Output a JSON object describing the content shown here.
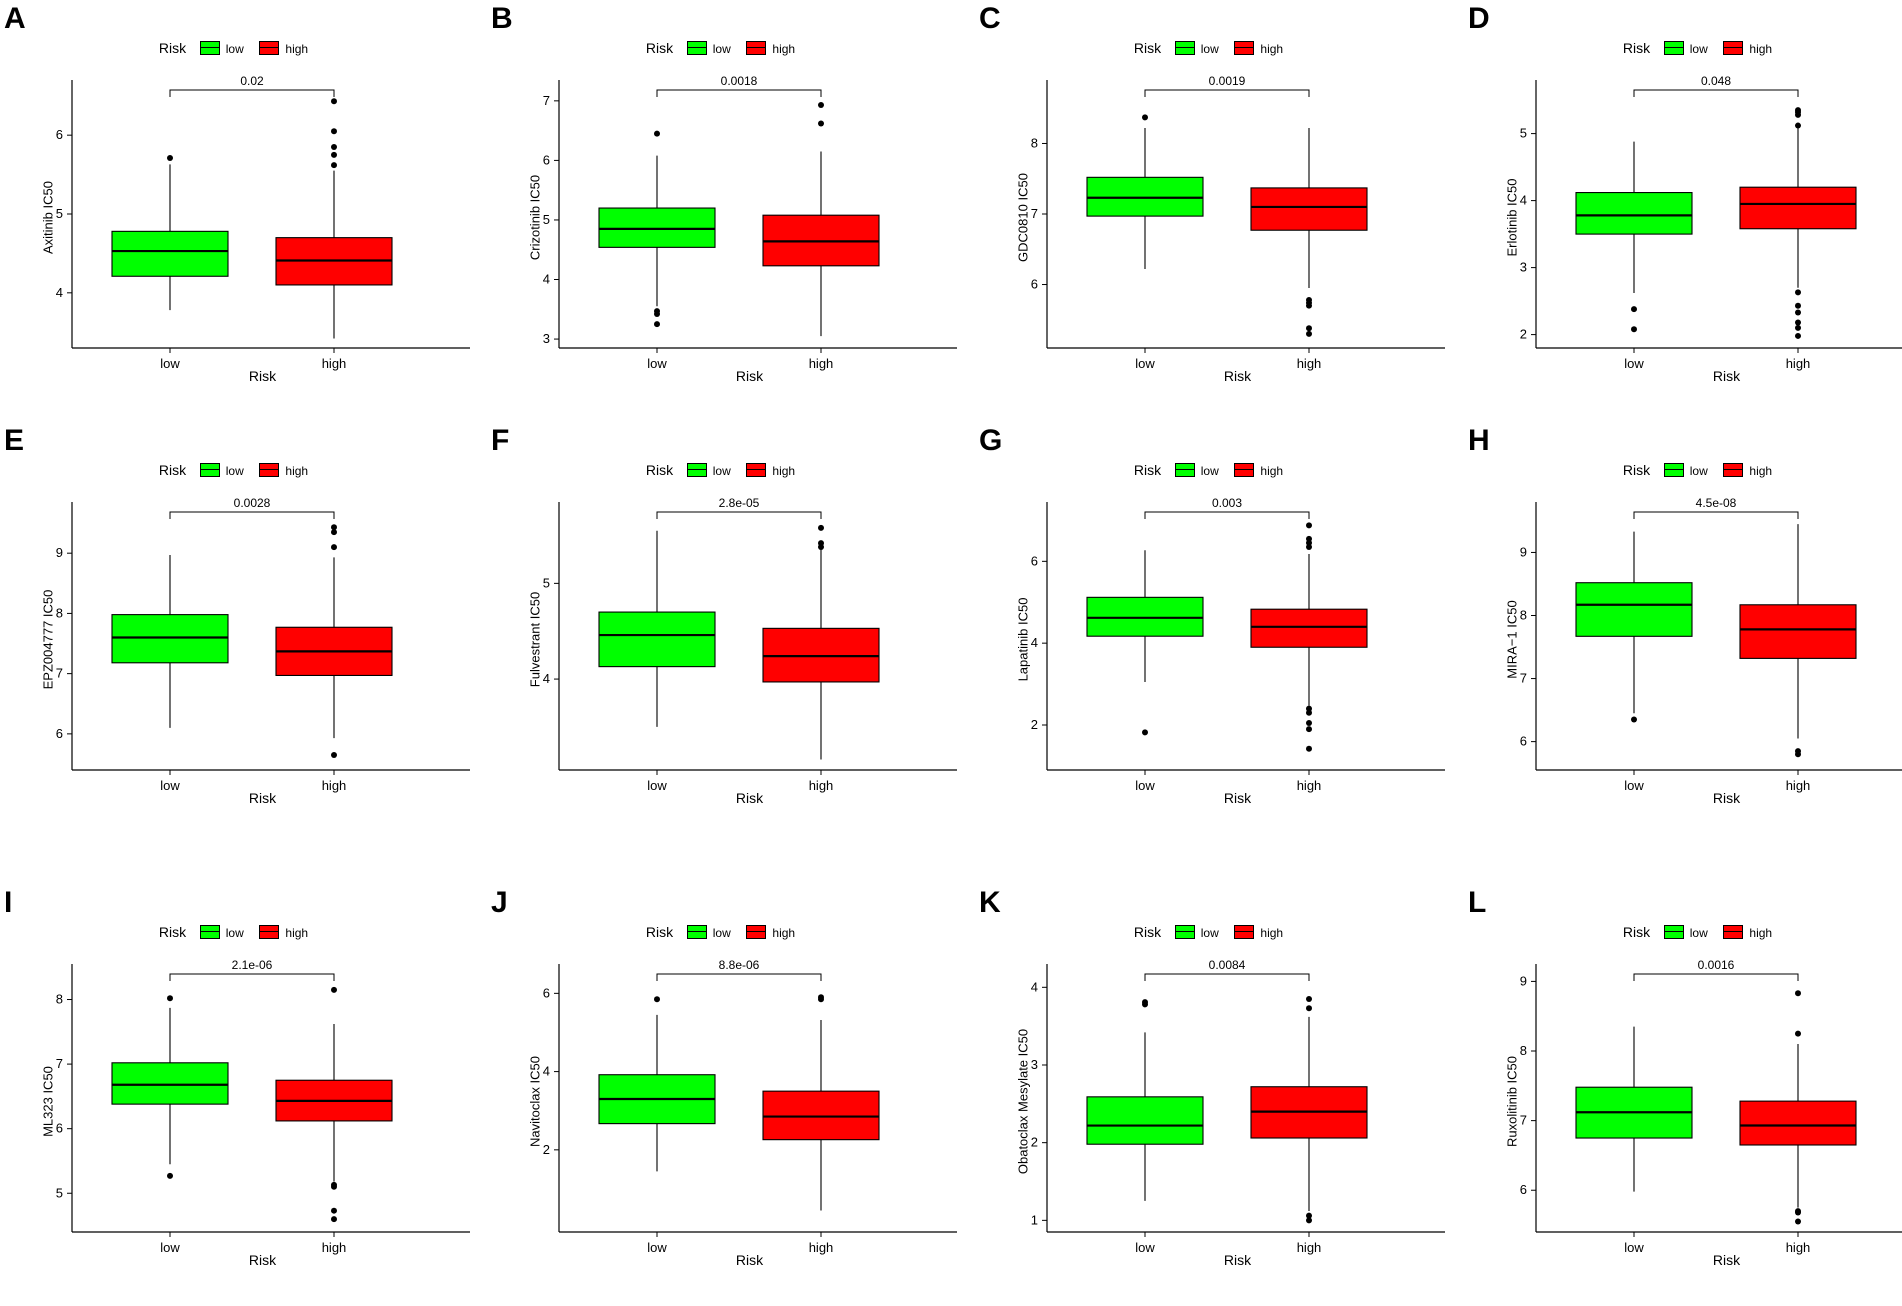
{
  "figure": {
    "legend_title": "Risk",
    "legend_low": "low",
    "legend_high": "high"
  },
  "chart_data": [
    {
      "type": "box",
      "letter": "A",
      "ylabel": "Axitinib IC50",
      "xlabel": "Risk",
      "categories": [
        "low",
        "high"
      ],
      "pvalue": "0.02",
      "ylim": [
        3.3,
        6.7
      ],
      "yticks": [
        4,
        5,
        6
      ],
      "boxes": [
        {
          "group": "low",
          "color": "#00ff00",
          "whisker_low": 3.78,
          "q1": 4.21,
          "median": 4.53,
          "q3": 4.78,
          "whisker_high": 5.63,
          "outliers": [
            5.71
          ]
        },
        {
          "group": "high",
          "color": "#ff0000",
          "whisker_low": 3.42,
          "q1": 4.1,
          "median": 4.41,
          "q3": 4.7,
          "whisker_high": 5.55,
          "outliers": [
            5.62,
            5.75,
            5.85,
            6.05,
            6.43
          ]
        }
      ]
    },
    {
      "type": "box",
      "letter": "B",
      "ylabel": "Crizotinib IC50",
      "xlabel": "Risk",
      "categories": [
        "low",
        "high"
      ],
      "pvalue": "0.0018",
      "ylim": [
        2.85,
        7.35
      ],
      "yticks": [
        3,
        4,
        5,
        6,
        7
      ],
      "boxes": [
        {
          "group": "low",
          "color": "#00ff00",
          "whisker_low": 3.55,
          "q1": 4.54,
          "median": 4.85,
          "q3": 5.2,
          "whisker_high": 6.08,
          "outliers": [
            3.25,
            3.42,
            3.47,
            6.45
          ]
        },
        {
          "group": "high",
          "color": "#ff0000",
          "whisker_low": 3.05,
          "q1": 4.23,
          "median": 4.64,
          "q3": 5.08,
          "whisker_high": 6.15,
          "outliers": [
            6.62,
            6.93
          ]
        }
      ]
    },
    {
      "type": "box",
      "letter": "C",
      "ylabel": "GDC0810 IC50",
      "xlabel": "Risk",
      "categories": [
        "low",
        "high"
      ],
      "pvalue": "0.0019",
      "ylim": [
        5.1,
        8.9
      ],
      "yticks": [
        6,
        7,
        8
      ],
      "boxes": [
        {
          "group": "low",
          "color": "#00ff00",
          "whisker_low": 6.22,
          "q1": 6.97,
          "median": 7.23,
          "q3": 7.52,
          "whisker_high": 8.22,
          "outliers": [
            8.37
          ]
        },
        {
          "group": "high",
          "color": "#ff0000",
          "whisker_low": 5.95,
          "q1": 6.77,
          "median": 7.1,
          "q3": 7.37,
          "whisker_high": 8.22,
          "outliers": [
            5.3,
            5.38,
            5.7,
            5.74,
            5.78
          ]
        }
      ]
    },
    {
      "type": "box",
      "letter": "D",
      "ylabel": "Erlotinib IC50",
      "xlabel": "Risk",
      "categories": [
        "low",
        "high"
      ],
      "pvalue": "0.048",
      "ylim": [
        1.8,
        5.8
      ],
      "yticks": [
        2,
        3,
        4,
        5
      ],
      "boxes": [
        {
          "group": "low",
          "color": "#00ff00",
          "whisker_low": 2.62,
          "q1": 3.5,
          "median": 3.78,
          "q3": 4.12,
          "whisker_high": 4.88,
          "outliers": [
            2.08,
            2.38
          ]
        },
        {
          "group": "high",
          "color": "#ff0000",
          "whisker_low": 2.7,
          "q1": 3.58,
          "median": 3.95,
          "q3": 4.2,
          "whisker_high": 5.1,
          "outliers": [
            1.98,
            2.1,
            2.18,
            2.33,
            2.43,
            2.63,
            5.12,
            5.28,
            5.32,
            5.35
          ]
        }
      ]
    },
    {
      "type": "box",
      "letter": "E",
      "ylabel": "EPZ004777 IC50",
      "xlabel": "Risk",
      "categories": [
        "low",
        "high"
      ],
      "pvalue": "0.0028",
      "ylim": [
        5.4,
        9.85
      ],
      "yticks": [
        6,
        7,
        8,
        9
      ],
      "boxes": [
        {
          "group": "low",
          "color": "#00ff00",
          "whisker_low": 6.1,
          "q1": 7.18,
          "median": 7.6,
          "q3": 7.98,
          "whisker_high": 8.97,
          "outliers": []
        },
        {
          "group": "high",
          "color": "#ff0000",
          "whisker_low": 5.93,
          "q1": 6.97,
          "median": 7.37,
          "q3": 7.77,
          "whisker_high": 8.93,
          "outliers": [
            5.65,
            9.1,
            9.35,
            9.43
          ]
        }
      ]
    },
    {
      "type": "box",
      "letter": "F",
      "ylabel": "Fulvestrant IC50",
      "xlabel": "Risk",
      "categories": [
        "low",
        "high"
      ],
      "pvalue": "2.8e-05",
      "ylim": [
        3.05,
        5.85
      ],
      "yticks": [
        4,
        5
      ],
      "boxes": [
        {
          "group": "low",
          "color": "#00ff00",
          "whisker_low": 3.5,
          "q1": 4.13,
          "median": 4.46,
          "q3": 4.7,
          "whisker_high": 5.55,
          "outliers": []
        },
        {
          "group": "high",
          "color": "#ff0000",
          "whisker_low": 3.16,
          "q1": 3.97,
          "median": 4.24,
          "q3": 4.53,
          "whisker_high": 5.4,
          "outliers": [
            5.38,
            5.42,
            5.58
          ]
        }
      ]
    },
    {
      "type": "box",
      "letter": "G",
      "ylabel": "Lapatinib IC50",
      "xlabel": "Risk",
      "categories": [
        "low",
        "high"
      ],
      "pvalue": "0.003",
      "ylim": [
        0.9,
        7.45
      ],
      "yticks": [
        2,
        4,
        6
      ],
      "boxes": [
        {
          "group": "low",
          "color": "#00ff00",
          "whisker_low": 3.05,
          "q1": 4.17,
          "median": 4.62,
          "q3": 5.12,
          "whisker_high": 6.27,
          "outliers": [
            1.82
          ]
        },
        {
          "group": "high",
          "color": "#ff0000",
          "whisker_low": 2.47,
          "q1": 3.9,
          "median": 4.4,
          "q3": 4.83,
          "whisker_high": 6.18,
          "outliers": [
            1.42,
            1.9,
            2.05,
            2.3,
            2.4,
            6.35,
            6.45,
            6.55,
            6.88
          ]
        }
      ]
    },
    {
      "type": "box",
      "letter": "H",
      "ylabel": "MIRA−1 IC50",
      "xlabel": "Risk",
      "categories": [
        "low",
        "high"
      ],
      "pvalue": "4.5e-08",
      "ylim": [
        5.55,
        9.8
      ],
      "yticks": [
        6,
        7,
        8,
        9
      ],
      "boxes": [
        {
          "group": "low",
          "color": "#00ff00",
          "whisker_low": 6.45,
          "q1": 7.67,
          "median": 8.17,
          "q3": 8.52,
          "whisker_high": 9.33,
          "outliers": [
            6.35
          ]
        },
        {
          "group": "high",
          "color": "#ff0000",
          "whisker_low": 6.05,
          "q1": 7.32,
          "median": 7.78,
          "q3": 8.17,
          "whisker_high": 9.45,
          "outliers": [
            5.8,
            5.85
          ]
        }
      ]
    },
    {
      "type": "box",
      "letter": "I",
      "ylabel": "ML323 IC50",
      "xlabel": "Risk",
      "categories": [
        "low",
        "high"
      ],
      "pvalue": "2.1e-06",
      "ylim": [
        4.4,
        8.55
      ],
      "yticks": [
        5,
        6,
        7,
        8
      ],
      "boxes": [
        {
          "group": "low",
          "color": "#00ff00",
          "whisker_low": 5.45,
          "q1": 6.38,
          "median": 6.68,
          "q3": 7.02,
          "whisker_high": 7.87,
          "outliers": [
            5.27,
            8.02
          ]
        },
        {
          "group": "high",
          "color": "#ff0000",
          "whisker_low": 5.18,
          "q1": 6.12,
          "median": 6.43,
          "q3": 6.75,
          "whisker_high": 7.62,
          "outliers": [
            4.6,
            4.73,
            5.1,
            5.13,
            8.15
          ]
        }
      ]
    },
    {
      "type": "box",
      "letter": "J",
      "ylabel": "Navitoclax IC50",
      "xlabel": "Risk",
      "categories": [
        "low",
        "high"
      ],
      "pvalue": "8.8e-06",
      "ylim": [
        -0.1,
        6.75
      ],
      "yticks": [
        2,
        4,
        6
      ],
      "boxes": [
        {
          "group": "low",
          "color": "#00ff00",
          "whisker_low": 1.45,
          "q1": 2.67,
          "median": 3.3,
          "q3": 3.92,
          "whisker_high": 5.45,
          "outliers": [
            5.85
          ]
        },
        {
          "group": "high",
          "color": "#ff0000",
          "whisker_low": 0.45,
          "q1": 2.26,
          "median": 2.85,
          "q3": 3.5,
          "whisker_high": 5.32,
          "outliers": [
            5.85,
            5.9
          ]
        }
      ]
    },
    {
      "type": "box",
      "letter": "K",
      "ylabel": "Obatoclax Mesylate IC50",
      "xlabel": "Risk",
      "categories": [
        "low",
        "high"
      ],
      "pvalue": "0.0084",
      "ylim": [
        0.85,
        4.3
      ],
      "yticks": [
        1,
        2,
        3,
        4
      ],
      "boxes": [
        {
          "group": "low",
          "color": "#00ff00",
          "whisker_low": 1.25,
          "q1": 1.98,
          "median": 2.22,
          "q3": 2.59,
          "whisker_high": 3.42,
          "outliers": [
            3.78,
            3.81
          ]
        },
        {
          "group": "high",
          "color": "#ff0000",
          "whisker_low": 1.12,
          "q1": 2.06,
          "median": 2.4,
          "q3": 2.72,
          "whisker_high": 3.62,
          "outliers": [
            1.0,
            1.06,
            3.73,
            3.85
          ]
        }
      ]
    },
    {
      "type": "box",
      "letter": "L",
      "ylabel": "Ruxolitinib IC50",
      "xlabel": "Risk",
      "categories": [
        "low",
        "high"
      ],
      "pvalue": "0.0016",
      "ylim": [
        5.4,
        9.25
      ],
      "yticks": [
        6,
        7,
        8,
        9
      ],
      "boxes": [
        {
          "group": "low",
          "color": "#00ff00",
          "whisker_low": 5.98,
          "q1": 6.75,
          "median": 7.12,
          "q3": 7.48,
          "whisker_high": 8.35,
          "outliers": []
        },
        {
          "group": "high",
          "color": "#ff0000",
          "whisker_low": 5.75,
          "q1": 6.65,
          "median": 6.93,
          "q3": 7.28,
          "whisker_high": 8.1,
          "outliers": [
            5.55,
            5.68,
            5.7,
            8.25,
            8.83
          ]
        }
      ]
    }
  ]
}
